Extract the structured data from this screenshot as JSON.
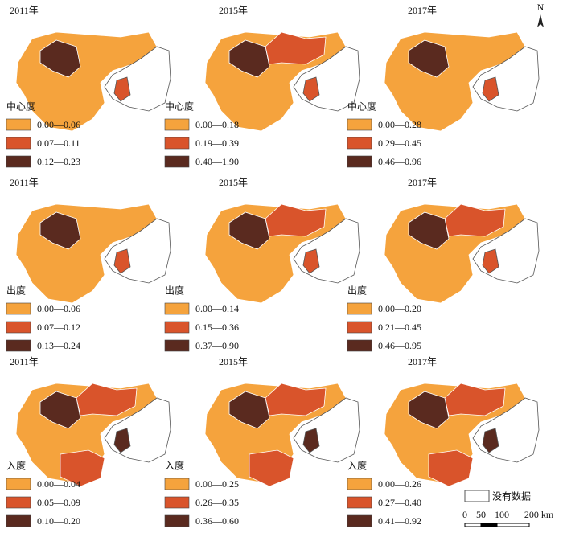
{
  "panels": [
    {
      "year": "2011年",
      "legend_title": "中心度",
      "classes": [
        "0.00—0.06",
        "0.07—0.11",
        "0.12—0.23"
      ]
    },
    {
      "year": "2015年",
      "legend_title": "中心度",
      "classes": [
        "0.00—0.18",
        "0.19—0.39",
        "0.40—1.90"
      ]
    },
    {
      "year": "2017年",
      "legend_title": "中心度",
      "classes": [
        "0.00—0.28",
        "0.29—0.45",
        "0.46—0.96"
      ]
    },
    {
      "year": "2011年",
      "legend_title": "出度",
      "classes": [
        "0.00—0.06",
        "0.07—0.12",
        "0.13—0.24"
      ]
    },
    {
      "year": "2015年",
      "legend_title": "出度",
      "classes": [
        "0.00—0.14",
        "0.15—0.36",
        "0.37—0.90"
      ]
    },
    {
      "year": "2017年",
      "legend_title": "出度",
      "classes": [
        "0.00—0.20",
        "0.21—0.45",
        "0.46—0.95"
      ]
    },
    {
      "year": "2011年",
      "legend_title": "入度",
      "classes": [
        "0.00—0.04",
        "0.05—0.09",
        "0.10—0.20"
      ]
    },
    {
      "year": "2015年",
      "legend_title": "入度",
      "classes": [
        "0.00—0.25",
        "0.26—0.35",
        "0.36—0.60"
      ]
    },
    {
      "year": "2017年",
      "legend_title": "入度",
      "classes": [
        "0.00—0.26",
        "0.27—0.40",
        "0.41—0.92"
      ]
    }
  ],
  "north": "N",
  "no_data": "没有数据",
  "scale": [
    "0",
    "50",
    "100",
    "200 km"
  ]
}
